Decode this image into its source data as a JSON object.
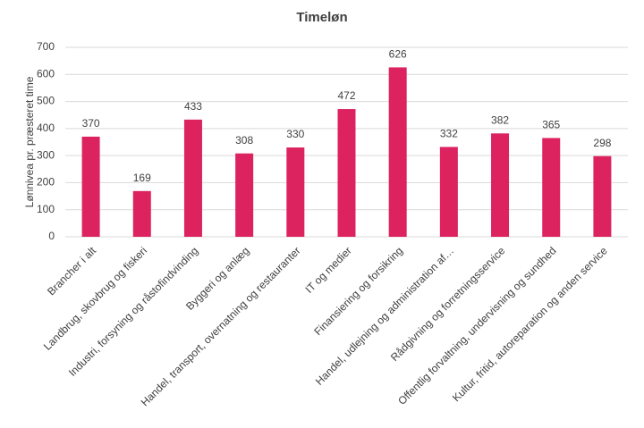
{
  "chart_data": {
    "type": "bar",
    "title": "Timeløn",
    "y_label": "Lønnivea pr. præsteret time",
    "categories": [
      "Brancher i alt",
      "Landbrug, skovbrug og fiskeri",
      "Industri, forsyning og råstofindvinding",
      "Byggeri og anlæg",
      "Handel, transport, overnatning og restauranter",
      "IT og medier",
      "Finansiering og forsikring",
      "Handel, udlejning og administration af…",
      "Rådgivning og forretningsservice",
      "Offentlig forvaltning, undervisning og sundhed",
      "Kultur, fritid, autoreparation og anden service"
    ],
    "values": [
      370,
      169,
      433,
      308,
      330,
      472,
      626,
      332,
      382,
      365,
      298
    ],
    "color": "#dc2360",
    "ylim": [
      0,
      700
    ],
    "yticks": [
      0,
      100,
      200,
      300,
      400,
      500,
      600,
      700
    ],
    "grid": true
  }
}
